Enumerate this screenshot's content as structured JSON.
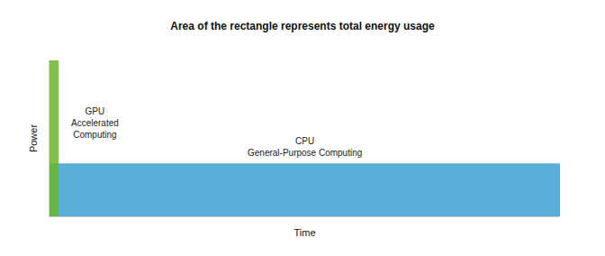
{
  "chart_data": {
    "type": "bar",
    "title": "Area of the rectangle represents total energy usage",
    "x_label": "Time",
    "y_label": "Power",
    "xlim": [
      0,
      100
    ],
    "ylim": [
      0,
      100
    ],
    "xticks": [],
    "yticks": [],
    "tick_labels": false,
    "grid": false,
    "series": [
      {
        "name": "CPU\nGeneral-Purpose Computing",
        "color": "#5aafd9",
        "values": [
          34
        ],
        "durations": [
          100
        ]
      },
      {
        "name": "GPU\nAccelerated\nComputing",
        "color": "#6cb52d",
        "values": [
          100
        ],
        "durations": [
          1.8
        ]
      }
    ]
  }
}
